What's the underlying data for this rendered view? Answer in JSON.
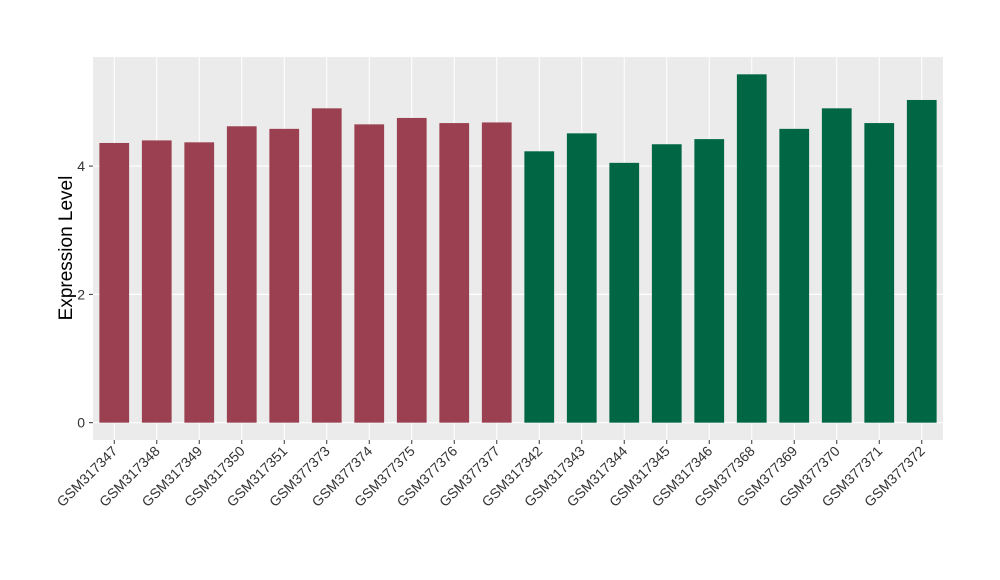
{
  "chart_data": {
    "type": "bar",
    "y_label": "Expression Level",
    "categories": [
      "GSM317347",
      "GSM317348",
      "GSM317349",
      "GSM317350",
      "GSM317351",
      "GSM377373",
      "GSM377374",
      "GSM377375",
      "GSM377376",
      "GSM377377",
      "GSM317342",
      "GSM317343",
      "GSM317344",
      "GSM317345",
      "GSM317346",
      "GSM377368",
      "GSM377369",
      "GSM377370",
      "GSM377371",
      "GSM377372"
    ],
    "values": [
      4.36,
      4.4,
      4.37,
      4.62,
      4.58,
      4.9,
      4.65,
      4.75,
      4.67,
      4.68,
      4.23,
      4.51,
      4.05,
      4.34,
      4.42,
      5.43,
      4.58,
      4.9,
      4.67,
      5.03
    ],
    "colors": [
      "#9b4050",
      "#9b4050",
      "#9b4050",
      "#9b4050",
      "#9b4050",
      "#9b4050",
      "#9b4050",
      "#9b4050",
      "#9b4050",
      "#9b4050",
      "#006644",
      "#006644",
      "#006644",
      "#006644",
      "#006644",
      "#006644",
      "#006644",
      "#006644",
      "#006644",
      "#006644"
    ],
    "ylim": [
      -0.27,
      5.7
    ],
    "yticks": [
      0,
      2,
      4
    ],
    "grid": true
  }
}
